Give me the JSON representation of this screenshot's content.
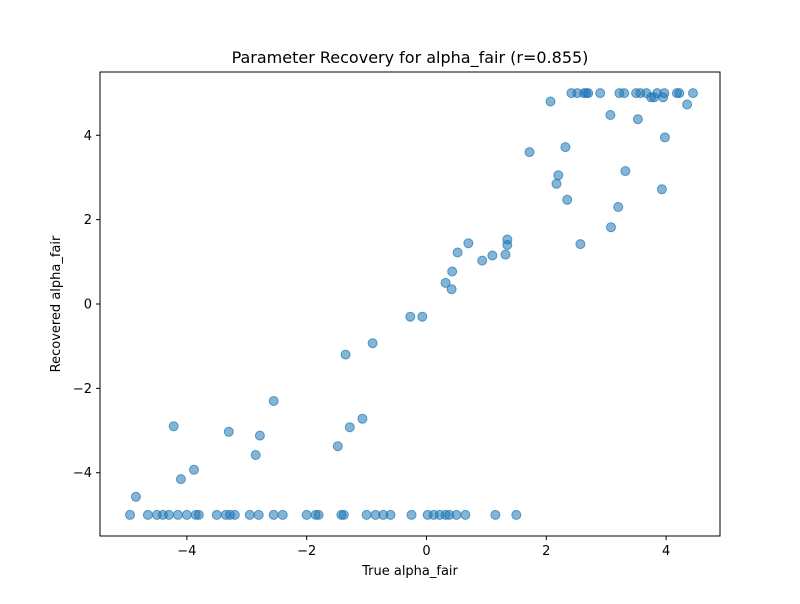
{
  "chart_data": {
    "type": "scatter",
    "title": "Parameter Recovery for alpha_fair (r=0.855)",
    "xlabel": "True alpha_fair",
    "ylabel": "Recovered alpha_fair",
    "xlim": [
      -5.45,
      4.9
    ],
    "ylim": [
      -5.5,
      5.5
    ],
    "xticks": [
      -4,
      -2,
      0,
      2,
      4
    ],
    "yticks": [
      -4,
      -2,
      0,
      2,
      4
    ],
    "xtick_labels": [
      "−4",
      "−2",
      "0",
      "2",
      "4"
    ],
    "ytick_labels": [
      "−4",
      "−2",
      "0",
      "2",
      "4"
    ],
    "grid": false,
    "marker_color": "#1f77b4",
    "marker_alpha": 0.55,
    "points": [
      [
        -4.95,
        -5.0
      ],
      [
        -4.65,
        -5.0
      ],
      [
        -4.5,
        -5.0
      ],
      [
        -4.4,
        -5.0
      ],
      [
        -4.3,
        -5.0
      ],
      [
        -4.15,
        -5.0
      ],
      [
        -4.0,
        -5.0
      ],
      [
        -3.85,
        -5.0
      ],
      [
        -3.8,
        -5.0
      ],
      [
        -3.5,
        -5.0
      ],
      [
        -3.35,
        -5.0
      ],
      [
        -3.28,
        -5.0
      ],
      [
        -3.2,
        -5.0
      ],
      [
        -2.95,
        -5.0
      ],
      [
        -2.8,
        -5.0
      ],
      [
        -2.55,
        -5.0
      ],
      [
        -2.4,
        -5.0
      ],
      [
        -2.0,
        -5.0
      ],
      [
        -1.85,
        -5.0
      ],
      [
        -1.8,
        -5.0
      ],
      [
        -1.42,
        -5.0
      ],
      [
        -1.38,
        -5.0
      ],
      [
        -1.0,
        -5.0
      ],
      [
        -0.85,
        -5.0
      ],
      [
        -0.72,
        -5.0
      ],
      [
        -0.6,
        -5.0
      ],
      [
        -0.25,
        -5.0
      ],
      [
        0.02,
        -5.0
      ],
      [
        0.12,
        -5.0
      ],
      [
        0.22,
        -5.0
      ],
      [
        0.32,
        -5.0
      ],
      [
        0.38,
        -5.0
      ],
      [
        0.5,
        -5.0
      ],
      [
        0.65,
        -5.0
      ],
      [
        1.15,
        -5.0
      ],
      [
        1.5,
        -5.0
      ],
      [
        -4.85,
        -4.57
      ],
      [
        -4.22,
        -2.9
      ],
      [
        -4.1,
        -4.15
      ],
      [
        -3.88,
        -3.93
      ],
      [
        -3.3,
        -3.03
      ],
      [
        -2.85,
        -3.58
      ],
      [
        -2.78,
        -3.12
      ],
      [
        -2.55,
        -2.3
      ],
      [
        -1.48,
        -3.37
      ],
      [
        -1.35,
        -1.2
      ],
      [
        -1.28,
        -2.92
      ],
      [
        -1.07,
        -2.72
      ],
      [
        -0.9,
        -0.93
      ],
      [
        -0.27,
        -0.3
      ],
      [
        -0.07,
        -0.3
      ],
      [
        0.32,
        0.5
      ],
      [
        0.42,
        0.35
      ],
      [
        0.43,
        0.77
      ],
      [
        0.52,
        1.22
      ],
      [
        0.7,
        1.44
      ],
      [
        0.93,
        1.03
      ],
      [
        1.1,
        1.15
      ],
      [
        1.32,
        1.17
      ],
      [
        1.35,
        1.4
      ],
      [
        1.35,
        1.53
      ],
      [
        1.72,
        3.6
      ],
      [
        2.07,
        4.8
      ],
      [
        2.17,
        2.85
      ],
      [
        2.2,
        3.05
      ],
      [
        2.32,
        3.72
      ],
      [
        2.35,
        2.47
      ],
      [
        2.42,
        5.0
      ],
      [
        2.52,
        5.0
      ],
      [
        2.57,
        1.42
      ],
      [
        2.63,
        5.0
      ],
      [
        2.67,
        5.0
      ],
      [
        2.7,
        5.0
      ],
      [
        2.9,
        5.0
      ],
      [
        3.07,
        4.48
      ],
      [
        3.08,
        1.82
      ],
      [
        3.2,
        2.3
      ],
      [
        3.22,
        5.0
      ],
      [
        3.3,
        5.0
      ],
      [
        3.32,
        3.15
      ],
      [
        3.5,
        5.0
      ],
      [
        3.53,
        4.38
      ],
      [
        3.57,
        5.0
      ],
      [
        3.67,
        5.0
      ],
      [
        3.75,
        4.9
      ],
      [
        3.8,
        4.9
      ],
      [
        3.85,
        5.0
      ],
      [
        3.93,
        2.72
      ],
      [
        3.95,
        4.9
      ],
      [
        3.97,
        5.0
      ],
      [
        3.98,
        3.95
      ],
      [
        4.18,
        5.0
      ],
      [
        4.22,
        5.0
      ],
      [
        4.35,
        4.73
      ],
      [
        4.45,
        5.0
      ]
    ]
  }
}
